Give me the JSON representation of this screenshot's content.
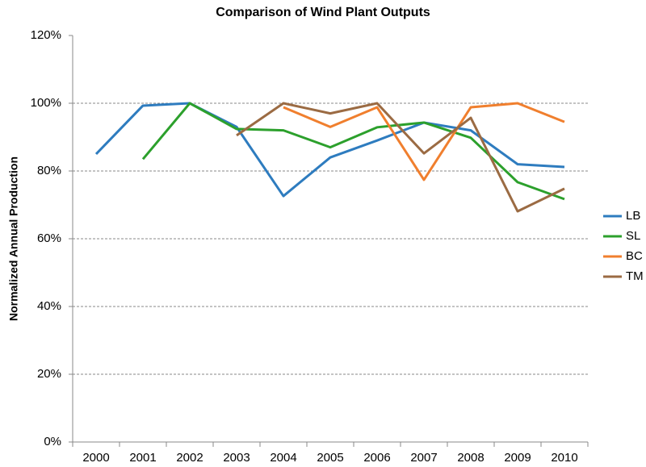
{
  "chart_data": {
    "type": "line",
    "title": "Comparison of Wind Plant Outputs",
    "y_label": "Normalized Annual Production",
    "categories": [
      "2000",
      "2001",
      "2002",
      "2003",
      "2004",
      "2005",
      "2006",
      "2007",
      "2008",
      "2009",
      "2010"
    ],
    "series": [
      {
        "name": "LB",
        "color": "#2e7cbf",
        "values": [
          85,
          99.3,
          100,
          93,
          72.6,
          84,
          89,
          94.3,
          92,
          82,
          81.2
        ]
      },
      {
        "name": "SL",
        "color": "#2ca02c",
        "values": [
          null,
          83.5,
          100,
          92.4,
          92,
          87,
          92.9,
          94.3,
          89.8,
          76.7,
          71.7
        ]
      },
      {
        "name": "BC",
        "color": "#f07f2e",
        "values": [
          null,
          null,
          null,
          null,
          98.8,
          93,
          98.8,
          77.4,
          98.8,
          100,
          94.5
        ]
      },
      {
        "name": "TM",
        "color": "#9b6b43",
        "values": [
          null,
          null,
          null,
          90.5,
          100,
          97,
          100,
          85.2,
          95.7,
          68.1,
          74.8
        ]
      }
    ],
    "ylim": [
      0,
      120
    ],
    "yticks": [
      {
        "value": 0,
        "label": "0%"
      },
      {
        "value": 20,
        "label": "20%"
      },
      {
        "value": 40,
        "label": "40%"
      },
      {
        "value": 60,
        "label": "60%"
      },
      {
        "value": 80,
        "label": "80%"
      },
      {
        "value": 100,
        "label": "100%"
      },
      {
        "value": 120,
        "label": "120%"
      }
    ],
    "grid": true,
    "legend": "right"
  }
}
